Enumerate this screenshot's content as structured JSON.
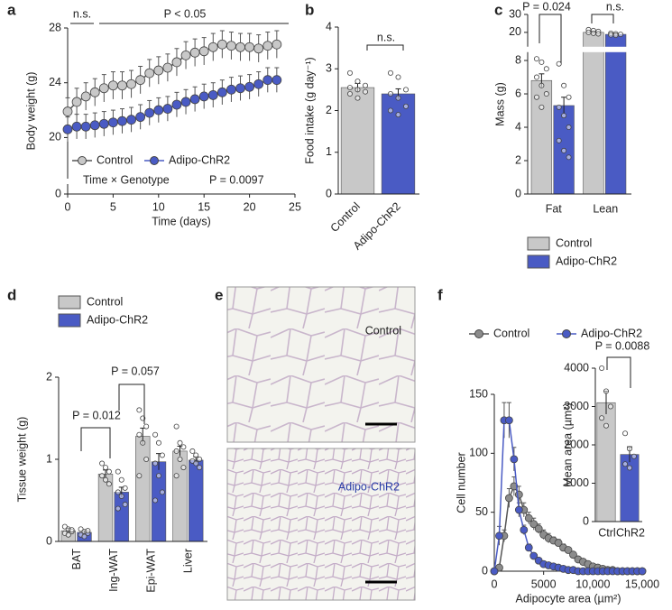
{
  "chart_data": [
    {
      "label": "a",
      "type": "line",
      "xlabel": "Time (days)",
      "ylabel": "Body weight (g)",
      "x": [
        0,
        1,
        2,
        3,
        4,
        5,
        6,
        7,
        8,
        9,
        10,
        11,
        12,
        13,
        14,
        15,
        16,
        17,
        18,
        19,
        20,
        21,
        22,
        23
      ],
      "xlim": [
        0,
        25
      ],
      "xticks": [
        0,
        5,
        10,
        15,
        20,
        25
      ],
      "ylim": [
        0,
        28
      ],
      "yticks": [
        0,
        20,
        24,
        28
      ],
      "ybreak": [
        2,
        17
      ],
      "legend": "lower left",
      "series": [
        {
          "name": "Control",
          "color": "#c8c8c8",
          "values": [
            21.9,
            22.6,
            23.0,
            23.3,
            23.6,
            23.8,
            23.8,
            23.9,
            24.2,
            24.7,
            24.9,
            25.1,
            25.5,
            26.0,
            26.2,
            26.3,
            26.6,
            26.8,
            26.7,
            26.6,
            26.6,
            26.5,
            26.7,
            26.8
          ],
          "errors": [
            1,
            1,
            1,
            1,
            1,
            1,
            1,
            1,
            1,
            1,
            1,
            1,
            1,
            1,
            1,
            1,
            1,
            1,
            1,
            1,
            1,
            1,
            1,
            1
          ]
        },
        {
          "name": "Adipo-ChR2",
          "color": "#4a5bc4",
          "values": [
            20.6,
            20.8,
            20.8,
            20.9,
            21.0,
            21.1,
            21.2,
            21.3,
            21.5,
            21.8,
            22.0,
            22.1,
            22.4,
            22.6,
            22.8,
            23.0,
            23.1,
            23.3,
            23.5,
            23.6,
            23.7,
            23.9,
            24.2,
            24.2
          ],
          "errors": [
            0.9,
            0.9,
            0.9,
            0.9,
            0.9,
            0.9,
            0.9,
            0.9,
            0.9,
            0.9,
            0.9,
            0.9,
            0.9,
            0.9,
            0.9,
            0.9,
            0.9,
            0.9,
            0.9,
            0.9,
            0.9,
            0.9,
            0.9,
            0.9
          ]
        }
      ],
      "annotations": [
        "n.s.",
        "P < 0.05",
        "Time × Genotype",
        "P = 0.0097"
      ]
    },
    {
      "label": "b",
      "type": "bar",
      "ylabel": "Food intake (g day⁻¹)",
      "categories": [
        "Control",
        "Adipo-ChR2"
      ],
      "values": [
        2.55,
        2.4
      ],
      "errors": [
        0.1,
        0.12
      ],
      "points": [
        [
          2.9,
          2.7,
          2.6,
          2.55,
          2.5,
          2.45,
          2.4,
          2.3
        ],
        [
          2.9,
          2.8,
          2.5,
          2.4,
          2.3,
          2.1,
          2.0,
          1.9
        ]
      ],
      "colors": [
        "#c8c8c8",
        "#4a5bc4"
      ],
      "ylim": [
        0,
        4
      ],
      "yticks": [
        0,
        1,
        2,
        3,
        4
      ],
      "annotations": [
        "n.s."
      ]
    },
    {
      "label": "c",
      "type": "bar",
      "ylabel": "Mass (g)",
      "categories": [
        "Fat",
        "Lean"
      ],
      "ylim": [
        0,
        30
      ],
      "yticks": [
        0,
        2,
        4,
        6,
        8,
        20,
        30
      ],
      "ybreak": [
        8.5,
        12
      ],
      "legend": "bottom",
      "series": [
        {
          "name": "Control",
          "color": "#c8c8c8",
          "values": [
            6.8,
            20.0
          ],
          "errors": [
            0.4,
            0.5
          ],
          "points": [
            [
              8.1,
              7.9,
              7.5,
              7.0,
              6.5,
              6.0,
              5.8,
              5.2
            ],
            [
              21.5,
              21.0,
              20.5,
              20.0,
              19.5,
              19.2
            ]
          ]
        },
        {
          "name": "Adipo-ChR2",
          "color": "#4a5bc4",
          "values": [
            5.3,
            18.9
          ],
          "errors": [
            0.5,
            0.4
          ],
          "points": [
            [
              7.8,
              6.5,
              5.8,
              5.2,
              4.7,
              4.0,
              3.2,
              2.6,
              2.2
            ],
            [
              19.5,
              19.2,
              18.9,
              18.6,
              18.4
            ]
          ]
        }
      ],
      "annotations": [
        "P = 0.024",
        "n.s."
      ]
    },
    {
      "label": "d",
      "type": "bar",
      "ylabel": "Tissue weight (g)",
      "categories": [
        "BAT",
        "Ing-WAT",
        "Epi-WAT",
        "Liver"
      ],
      "ylim": [
        0,
        2
      ],
      "yticks": [
        0,
        1,
        2
      ],
      "legend": "top left",
      "series": [
        {
          "name": "Control",
          "color": "#c8c8c8",
          "values": [
            0.13,
            0.82,
            1.28,
            1.1
          ],
          "errors": [
            0.03,
            0.05,
            0.1,
            0.06
          ],
          "points": [
            [
              0.18,
              0.15,
              0.12,
              0.1,
              0.08,
              0.14
            ],
            [
              0.95,
              0.9,
              0.85,
              0.8,
              0.75,
              0.7
            ],
            [
              1.6,
              1.5,
              1.4,
              1.3,
              1.2,
              1.0,
              0.8
            ],
            [
              1.4,
              1.2,
              1.15,
              1.1,
              1.0,
              0.9,
              0.8
            ]
          ]
        },
        {
          "name": "Adipo-ChR2",
          "color": "#4a5bc4",
          "values": [
            0.11,
            0.6,
            0.97,
            0.99
          ],
          "errors": [
            0.02,
            0.06,
            0.1,
            0.04
          ],
          "points": [
            [
              0.15,
              0.12,
              0.1,
              0.08,
              0.06,
              0.13
            ],
            [
              0.85,
              0.75,
              0.65,
              0.6,
              0.55,
              0.45,
              0.4
            ],
            [
              1.3,
              1.2,
              1.05,
              0.95,
              0.8,
              0.6,
              0.5
            ],
            [
              1.1,
              1.05,
              1.0,
              0.98,
              0.95,
              0.9
            ]
          ]
        }
      ],
      "annotations": [
        "P = 0.012",
        "P = 0.057"
      ]
    },
    {
      "label": "e",
      "type": "image",
      "labels": [
        "Control",
        "Adipo-ChR2"
      ]
    },
    {
      "label": "f",
      "type": "line",
      "xlabel": "Adipocyte area (µm²)",
      "ylabel": "Cell number",
      "x": [
        0,
        500,
        1000,
        1500,
        2000,
        2500,
        3000,
        3500,
        4000,
        4500,
        5000,
        5500,
        6000,
        6500,
        7000,
        7500,
        8000,
        8500,
        9000,
        9500,
        10000,
        10500,
        11000,
        11500,
        12000,
        12500,
        13000,
        13500,
        14000,
        14500,
        15000
      ],
      "xlim": [
        0,
        15000
      ],
      "xticks": [
        0,
        5000,
        {
          "value": 10000,
          "label": "10,000"
        },
        {
          "value": 15000,
          "label": "15,000"
        }
      ],
      "ylim": [
        0,
        150
      ],
      "yticks": [
        0,
        50,
        100,
        150
      ],
      "legend": "top",
      "series": [
        {
          "name": "Control",
          "color": "#8c8c8c",
          "values": [
            0,
            3,
            30,
            62,
            72,
            65,
            52,
            45,
            40,
            36,
            31,
            28,
            26,
            24,
            20,
            18,
            14,
            10,
            8,
            6,
            4,
            3,
            2,
            1,
            1,
            0,
            0,
            0,
            0,
            0,
            0
          ],
          "errors": [
            0,
            1,
            5,
            8,
            8,
            7,
            6,
            5,
            5,
            4,
            4,
            4,
            3,
            3,
            3,
            2,
            2,
            2,
            2,
            1,
            1,
            1,
            1,
            0,
            0,
            0,
            0,
            0,
            0,
            0,
            0
          ]
        },
        {
          "name": "Adipo-ChR2",
          "color": "#4a5bc4",
          "values": [
            0,
            30,
            128,
            128,
            95,
            52,
            35,
            20,
            13,
            9,
            6,
            5,
            4,
            3,
            2,
            1,
            1,
            0,
            0,
            0,
            0,
            0,
            0,
            0,
            0,
            0,
            0,
            0,
            0,
            0,
            0
          ],
          "errors": [
            0,
            8,
            15,
            15,
            10,
            6,
            4,
            3,
            2,
            2,
            1,
            1,
            1,
            1,
            0,
            0,
            0,
            0,
            0,
            0,
            0,
            0,
            0,
            0,
            0,
            0,
            0,
            0,
            0,
            0,
            0
          ]
        }
      ],
      "inset": {
        "type": "bar",
        "ylabel": "Mean area (µm²)",
        "categories": [
          "Ctrl",
          "ChR2"
        ],
        "values": [
          3100,
          1750
        ],
        "errors": [
          300,
          200
        ],
        "points": [
          [
            4000,
            3400,
            3000,
            2700,
            2500
          ],
          [
            2300,
            1900,
            1700,
            1500,
            1400
          ]
        ],
        "colors": [
          "#c8c8c8",
          "#4a5bc4"
        ],
        "ylim": [
          0,
          4000
        ],
        "yticks": [
          0,
          1000,
          2000,
          3000,
          4000
        ],
        "annotations": [
          "P = 0.0088"
        ]
      }
    }
  ]
}
